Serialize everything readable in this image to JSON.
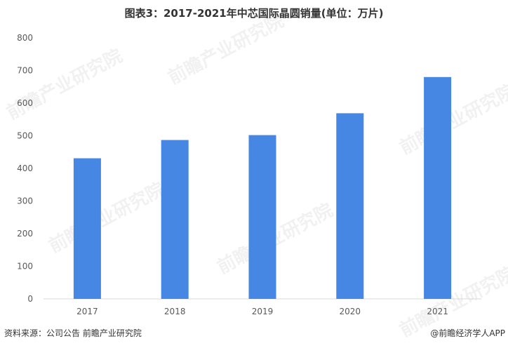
{
  "title": "图表3：2017-2021年中芯国际晶圆销量(单位：万片)",
  "footer": {
    "source": "资料来源：公司公告 前瞻产业研究院",
    "brand": "@前瞻经济学人APP"
  },
  "watermark": "前瞻产业研究院",
  "colors": {
    "bar": "#4587E3",
    "axis": "#D9D9D9",
    "text": "#595959"
  },
  "chart_data": {
    "type": "bar",
    "categories": [
      "2017",
      "2018",
      "2019",
      "2020",
      "2021"
    ],
    "values": [
      431,
      487,
      502,
      569,
      680
    ],
    "ylim": [
      0,
      800
    ],
    "yticks": [
      0,
      100,
      200,
      300,
      400,
      500,
      600,
      700,
      800
    ],
    "grid": false,
    "legend": "none"
  }
}
